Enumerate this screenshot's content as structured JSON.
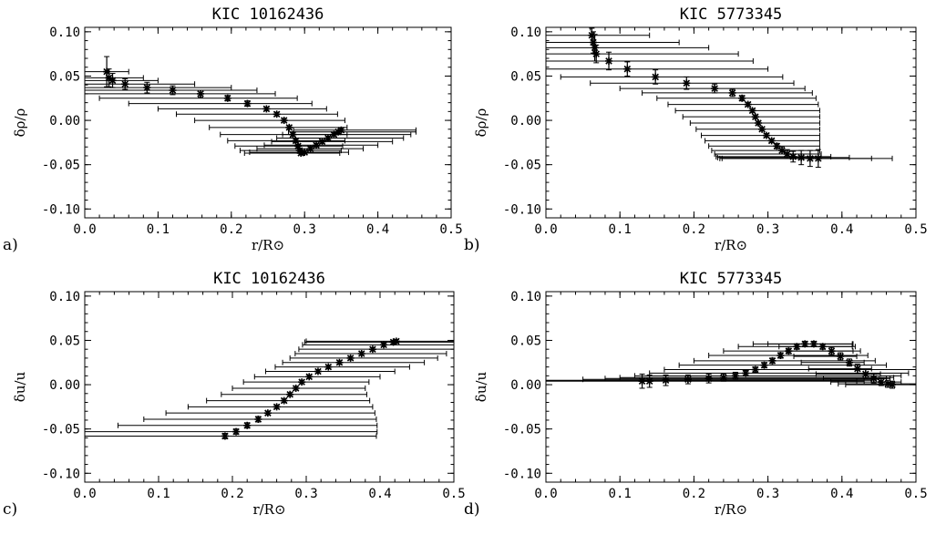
{
  "chart_data": [
    {
      "type": "scatter",
      "panel": "a)",
      "title": "KIC 10162436",
      "xlabel": "r/R⊙",
      "ylabel": "δρ/ρ",
      "xlim": [
        0.0,
        0.5
      ],
      "ylim": [
        -0.11,
        0.105
      ],
      "xticks": [
        0.0,
        0.1,
        0.2,
        0.3,
        0.4,
        0.5
      ],
      "yticks": [
        -0.1,
        -0.05,
        0.0,
        0.05,
        0.1
      ],
      "xticklabels": [
        "0.0",
        "0.1",
        "0.2",
        "0.3",
        "0.4",
        "0.5"
      ],
      "yticklabels": [
        "-0.10",
        "-0.05",
        "0.00",
        "0.05",
        "0.10"
      ],
      "grid": false,
      "points": [
        {
          "x": 0.03,
          "y": 0.055,
          "xlo": 0.0,
          "xhi": 0.06,
          "yerr": 0.017
        },
        {
          "x": 0.033,
          "y": 0.048,
          "xlo": 0.0,
          "xhi": 0.08,
          "yerr": 0.01
        },
        {
          "x": 0.038,
          "y": 0.045,
          "xlo": 0.0,
          "xhi": 0.1,
          "yerr": 0.008
        },
        {
          "x": 0.055,
          "y": 0.041,
          "xlo": 0.0,
          "xhi": 0.15,
          "yerr": 0.006
        },
        {
          "x": 0.085,
          "y": 0.037,
          "xlo": 0.0,
          "xhi": 0.2,
          "yerr": 0.006
        },
        {
          "x": 0.12,
          "y": 0.034,
          "xlo": 0.0,
          "xhi": 0.235,
          "yerr": 0.005
        },
        {
          "x": 0.158,
          "y": 0.03,
          "xlo": 0.0,
          "xhi": 0.26,
          "yerr": 0.004
        },
        {
          "x": 0.195,
          "y": 0.025,
          "xlo": 0.02,
          "xhi": 0.29,
          "yerr": 0.003
        },
        {
          "x": 0.222,
          "y": 0.019,
          "xlo": 0.06,
          "xhi": 0.31,
          "yerr": 0.003
        },
        {
          "x": 0.248,
          "y": 0.013,
          "xlo": 0.1,
          "xhi": 0.33,
          "yerr": 0.002
        },
        {
          "x": 0.262,
          "y": 0.007,
          "xlo": 0.125,
          "xhi": 0.345,
          "yerr": 0.002
        },
        {
          "x": 0.272,
          "y": 0.0,
          "xlo": 0.15,
          "xhi": 0.355,
          "yerr": 0.002
        },
        {
          "x": 0.279,
          "y": -0.008,
          "xlo": 0.17,
          "xhi": 0.358,
          "yerr": 0.002
        },
        {
          "x": 0.284,
          "y": -0.016,
          "xlo": 0.185,
          "xhi": 0.358,
          "yerr": 0.002
        },
        {
          "x": 0.288,
          "y": -0.023,
          "xlo": 0.195,
          "xhi": 0.355,
          "yerr": 0.002
        },
        {
          "x": 0.291,
          "y": -0.029,
          "xlo": 0.205,
          "xhi": 0.352,
          "yerr": 0.002
        },
        {
          "x": 0.293,
          "y": -0.034,
          "xlo": 0.212,
          "xhi": 0.35,
          "yerr": 0.002
        },
        {
          "x": 0.295,
          "y": -0.037,
          "xlo": 0.218,
          "xhi": 0.348,
          "yerr": 0.002
        },
        {
          "x": 0.3,
          "y": -0.036,
          "xlo": 0.225,
          "xhi": 0.36,
          "yerr": 0.002
        },
        {
          "x": 0.308,
          "y": -0.032,
          "xlo": 0.235,
          "xhi": 0.38,
          "yerr": 0.002
        },
        {
          "x": 0.316,
          "y": -0.028,
          "xlo": 0.245,
          "xhi": 0.4,
          "yerr": 0.002
        },
        {
          "x": 0.324,
          "y": -0.024,
          "xlo": 0.255,
          "xhi": 0.42,
          "yerr": 0.002
        },
        {
          "x": 0.332,
          "y": -0.02,
          "xlo": 0.262,
          "xhi": 0.435,
          "yerr": 0.002
        },
        {
          "x": 0.34,
          "y": -0.016,
          "xlo": 0.27,
          "xhi": 0.445,
          "yerr": 0.002
        },
        {
          "x": 0.346,
          "y": -0.013,
          "xlo": 0.278,
          "xhi": 0.452,
          "yerr": 0.002
        },
        {
          "x": 0.35,
          "y": -0.011,
          "xlo": 0.285,
          "xhi": 0.452,
          "yerr": 0.002
        }
      ]
    },
    {
      "type": "scatter",
      "panel": "b)",
      "title": "KIC 5773345",
      "xlabel": "r/R⊙",
      "ylabel": "δρ/ρ",
      "xlim": [
        0.0,
        0.5
      ],
      "ylim": [
        -0.11,
        0.105
      ],
      "xticks": [
        0.0,
        0.1,
        0.2,
        0.3,
        0.4,
        0.5
      ],
      "yticks": [
        -0.1,
        -0.05,
        0.0,
        0.05,
        0.1
      ],
      "xticklabels": [
        "0.0",
        "0.1",
        "0.2",
        "0.3",
        "0.4",
        "0.5"
      ],
      "yticklabels": [
        "-0.10",
        "-0.05",
        "0.00",
        "0.05",
        "0.10"
      ],
      "grid": false,
      "points": [
        {
          "x": 0.062,
          "y": 0.096,
          "xlo": 0.0,
          "xhi": 0.14,
          "yerr": 0.008
        },
        {
          "x": 0.064,
          "y": 0.088,
          "xlo": 0.0,
          "xhi": 0.18,
          "yerr": 0.012
        },
        {
          "x": 0.066,
          "y": 0.082,
          "xlo": 0.0,
          "xhi": 0.22,
          "yerr": 0.015
        },
        {
          "x": 0.068,
          "y": 0.075,
          "xlo": 0.0,
          "xhi": 0.26,
          "yerr": 0.01
        },
        {
          "x": 0.085,
          "y": 0.067,
          "xlo": 0.0,
          "xhi": 0.28,
          "yerr": 0.01
        },
        {
          "x": 0.11,
          "y": 0.058,
          "xlo": 0.0,
          "xhi": 0.3,
          "yerr": 0.008
        },
        {
          "x": 0.148,
          "y": 0.049,
          "xlo": 0.02,
          "xhi": 0.32,
          "yerr": 0.008
        },
        {
          "x": 0.19,
          "y": 0.042,
          "xlo": 0.06,
          "xhi": 0.335,
          "yerr": 0.007
        },
        {
          "x": 0.228,
          "y": 0.036,
          "xlo": 0.1,
          "xhi": 0.35,
          "yerr": 0.005
        },
        {
          "x": 0.252,
          "y": 0.031,
          "xlo": 0.13,
          "xhi": 0.36,
          "yerr": 0.004
        },
        {
          "x": 0.265,
          "y": 0.025,
          "xlo": 0.15,
          "xhi": 0.365,
          "yerr": 0.003
        },
        {
          "x": 0.273,
          "y": 0.018,
          "xlo": 0.165,
          "xhi": 0.368,
          "yerr": 0.002
        },
        {
          "x": 0.279,
          "y": 0.011,
          "xlo": 0.175,
          "xhi": 0.37,
          "yerr": 0.002
        },
        {
          "x": 0.283,
          "y": 0.004,
          "xlo": 0.185,
          "xhi": 0.37,
          "yerr": 0.002
        },
        {
          "x": 0.287,
          "y": -0.003,
          "xlo": 0.195,
          "xhi": 0.37,
          "yerr": 0.002
        },
        {
          "x": 0.292,
          "y": -0.01,
          "xlo": 0.203,
          "xhi": 0.37,
          "yerr": 0.002
        },
        {
          "x": 0.298,
          "y": -0.017,
          "xlo": 0.21,
          "xhi": 0.37,
          "yerr": 0.002
        },
        {
          "x": 0.305,
          "y": -0.023,
          "xlo": 0.215,
          "xhi": 0.37,
          "yerr": 0.002
        },
        {
          "x": 0.312,
          "y": -0.029,
          "xlo": 0.22,
          "xhi": 0.37,
          "yerr": 0.003
        },
        {
          "x": 0.319,
          "y": -0.034,
          "xlo": 0.224,
          "xhi": 0.37,
          "yerr": 0.004
        },
        {
          "x": 0.326,
          "y": -0.038,
          "xlo": 0.228,
          "xhi": 0.372,
          "yerr": 0.005
        },
        {
          "x": 0.334,
          "y": -0.041,
          "xlo": 0.23,
          "xhi": 0.385,
          "yerr": 0.006
        },
        {
          "x": 0.345,
          "y": -0.042,
          "xlo": 0.232,
          "xhi": 0.41,
          "yerr": 0.008
        },
        {
          "x": 0.357,
          "y": -0.043,
          "xlo": 0.235,
          "xhi": 0.44,
          "yerr": 0.009
        },
        {
          "x": 0.368,
          "y": -0.043,
          "xlo": 0.238,
          "xhi": 0.468,
          "yerr": 0.01
        }
      ]
    },
    {
      "type": "scatter",
      "panel": "c)",
      "title": "KIC 10162436",
      "xlabel": "r/R⊙",
      "ylabel": "δu/u",
      "xlim": [
        0.0,
        0.5
      ],
      "ylim": [
        -0.11,
        0.105
      ],
      "xticks": [
        0.0,
        0.1,
        0.2,
        0.3,
        0.4,
        0.5
      ],
      "yticks": [
        -0.1,
        -0.05,
        0.0,
        0.05,
        0.1
      ],
      "xticklabels": [
        "0.0",
        "0.1",
        "0.2",
        "0.3",
        "0.4",
        "0.5"
      ],
      "yticklabels": [
        "-0.10",
        "-0.05",
        "0.00",
        "0.05",
        "0.10"
      ],
      "grid": false,
      "points": [
        {
          "x": 0.19,
          "y": -0.058,
          "xlo": 0.0,
          "xhi": 0.395,
          "yerr": 0.003
        },
        {
          "x": 0.205,
          "y": -0.053,
          "xlo": 0.0,
          "xhi": 0.396,
          "yerr": 0.003
        },
        {
          "x": 0.22,
          "y": -0.046,
          "xlo": 0.045,
          "xhi": 0.396,
          "yerr": 0.003
        },
        {
          "x": 0.235,
          "y": -0.039,
          "xlo": 0.08,
          "xhi": 0.395,
          "yerr": 0.003
        },
        {
          "x": 0.248,
          "y": -0.032,
          "xlo": 0.11,
          "xhi": 0.393,
          "yerr": 0.002
        },
        {
          "x": 0.26,
          "y": -0.025,
          "xlo": 0.14,
          "xhi": 0.39,
          "yerr": 0.002
        },
        {
          "x": 0.27,
          "y": -0.018,
          "xlo": 0.165,
          "xhi": 0.386,
          "yerr": 0.002
        },
        {
          "x": 0.278,
          "y": -0.011,
          "xlo": 0.185,
          "xhi": 0.382,
          "yerr": 0.002
        },
        {
          "x": 0.286,
          "y": -0.004,
          "xlo": 0.2,
          "xhi": 0.38,
          "yerr": 0.002
        },
        {
          "x": 0.294,
          "y": 0.003,
          "xlo": 0.215,
          "xhi": 0.385,
          "yerr": 0.002
        },
        {
          "x": 0.304,
          "y": 0.009,
          "xlo": 0.23,
          "xhi": 0.4,
          "yerr": 0.002
        },
        {
          "x": 0.316,
          "y": 0.015,
          "xlo": 0.245,
          "xhi": 0.42,
          "yerr": 0.002
        },
        {
          "x": 0.33,
          "y": 0.02,
          "xlo": 0.258,
          "xhi": 0.44,
          "yerr": 0.002
        },
        {
          "x": 0.345,
          "y": 0.025,
          "xlo": 0.268,
          "xhi": 0.46,
          "yerr": 0.002
        },
        {
          "x": 0.36,
          "y": 0.03,
          "xlo": 0.278,
          "xhi": 0.478,
          "yerr": 0.002
        },
        {
          "x": 0.375,
          "y": 0.035,
          "xlo": 0.285,
          "xhi": 0.49,
          "yerr": 0.002
        },
        {
          "x": 0.39,
          "y": 0.04,
          "xlo": 0.29,
          "xhi": 0.5,
          "yerr": 0.002
        },
        {
          "x": 0.405,
          "y": 0.045,
          "xlo": 0.295,
          "xhi": 0.5,
          "yerr": 0.002
        },
        {
          "x": 0.418,
          "y": 0.048,
          "xlo": 0.298,
          "xhi": 0.5,
          "yerr": 0.002
        },
        {
          "x": 0.422,
          "y": 0.049,
          "xlo": 0.3,
          "xhi": 0.5,
          "yerr": 0.002
        }
      ]
    },
    {
      "type": "scatter",
      "panel": "d)",
      "title": "KIC 5773345",
      "xlabel": "r/R⊙",
      "ylabel": "δu/u",
      "xlim": [
        0.0,
        0.5
      ],
      "ylim": [
        -0.11,
        0.105
      ],
      "xticks": [
        0.0,
        0.1,
        0.2,
        0.3,
        0.4,
        0.5
      ],
      "yticks": [
        -0.1,
        -0.05,
        0.0,
        0.05,
        0.1
      ],
      "xticklabels": [
        "0.0",
        "0.1",
        "0.2",
        "0.3",
        "0.4",
        "0.5"
      ],
      "yticklabels": [
        "-0.10",
        "-0.05",
        "0.00",
        "0.05",
        "0.10"
      ],
      "grid": false,
      "points": [
        {
          "x": 0.13,
          "y": 0.004,
          "xlo": 0.0,
          "xhi": 0.42,
          "yerr": 0.008
        },
        {
          "x": 0.14,
          "y": 0.004,
          "xlo": 0.0,
          "xhi": 0.43,
          "yerr": 0.007
        },
        {
          "x": 0.162,
          "y": 0.005,
          "xlo": 0.0,
          "xhi": 0.44,
          "yerr": 0.006
        },
        {
          "x": 0.192,
          "y": 0.006,
          "xlo": 0.05,
          "xhi": 0.45,
          "yerr": 0.005
        },
        {
          "x": 0.22,
          "y": 0.007,
          "xlo": 0.08,
          "xhi": 0.46,
          "yerr": 0.005
        },
        {
          "x": 0.24,
          "y": 0.008,
          "xlo": 0.1,
          "xhi": 0.47,
          "yerr": 0.004
        },
        {
          "x": 0.256,
          "y": 0.01,
          "xlo": 0.12,
          "xhi": 0.48,
          "yerr": 0.004
        },
        {
          "x": 0.27,
          "y": 0.013,
          "xlo": 0.14,
          "xhi": 0.49,
          "yerr": 0.003
        },
        {
          "x": 0.283,
          "y": 0.017,
          "xlo": 0.16,
          "xhi": 0.5,
          "yerr": 0.003
        },
        {
          "x": 0.295,
          "y": 0.022,
          "xlo": 0.18,
          "xhi": 0.46,
          "yerr": 0.003
        },
        {
          "x": 0.306,
          "y": 0.027,
          "xlo": 0.2,
          "xhi": 0.445,
          "yerr": 0.003
        },
        {
          "x": 0.317,
          "y": 0.033,
          "xlo": 0.22,
          "xhi": 0.435,
          "yerr": 0.003
        },
        {
          "x": 0.328,
          "y": 0.038,
          "xlo": 0.24,
          "xhi": 0.425,
          "yerr": 0.003
        },
        {
          "x": 0.339,
          "y": 0.043,
          "xlo": 0.26,
          "xhi": 0.418,
          "yerr": 0.003
        },
        {
          "x": 0.35,
          "y": 0.046,
          "xlo": 0.28,
          "xhi": 0.415,
          "yerr": 0.003
        },
        {
          "x": 0.362,
          "y": 0.046,
          "xlo": 0.3,
          "xhi": 0.414,
          "yerr": 0.003
        },
        {
          "x": 0.374,
          "y": 0.043,
          "xlo": 0.315,
          "xhi": 0.414,
          "yerr": 0.003
        },
        {
          "x": 0.386,
          "y": 0.038,
          "xlo": 0.325,
          "xhi": 0.415,
          "yerr": 0.004
        },
        {
          "x": 0.398,
          "y": 0.032,
          "xlo": 0.335,
          "xhi": 0.42,
          "yerr": 0.004
        },
        {
          "x": 0.41,
          "y": 0.025,
          "xlo": 0.345,
          "xhi": 0.43,
          "yerr": 0.004
        },
        {
          "x": 0.421,
          "y": 0.018,
          "xlo": 0.355,
          "xhi": 0.44,
          "yerr": 0.005
        },
        {
          "x": 0.432,
          "y": 0.012,
          "xlo": 0.365,
          "xhi": 0.452,
          "yerr": 0.005
        },
        {
          "x": 0.443,
          "y": 0.007,
          "xlo": 0.375,
          "xhi": 0.465,
          "yerr": 0.005
        },
        {
          "x": 0.453,
          "y": 0.003,
          "xlo": 0.385,
          "xhi": 0.48,
          "yerr": 0.004
        },
        {
          "x": 0.462,
          "y": 0.001,
          "xlo": 0.395,
          "xhi": 0.5,
          "yerr": 0.004
        },
        {
          "x": 0.468,
          "y": 0.0,
          "xlo": 0.405,
          "xhi": 0.5,
          "yerr": 0.004
        }
      ]
    }
  ]
}
